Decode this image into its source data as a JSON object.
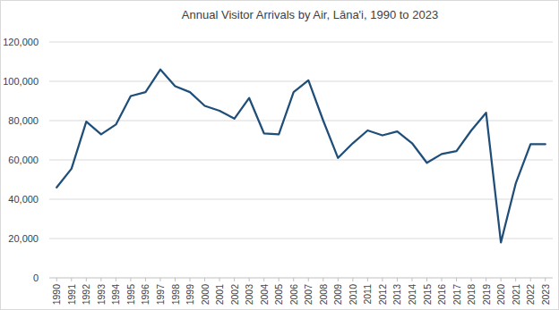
{
  "chart_data": {
    "type": "line",
    "title": "Annual Visitor Arrivals by Air, Lāna'i, 1990 to 2023",
    "categories": [
      "1990",
      "1991",
      "1992",
      "1993",
      "1994",
      "1995",
      "1996",
      "1997",
      "1998",
      "1999",
      "2000",
      "2001",
      "2002",
      "2003",
      "2004",
      "2005",
      "2006",
      "2007",
      "2008",
      "2009",
      "2010",
      "2011",
      "2012",
      "2013",
      "2014",
      "2015",
      "2016",
      "2017",
      "2018",
      "2019",
      "2020",
      "2021",
      "2022",
      "2023"
    ],
    "values": [
      46000,
      55500,
      79500,
      73000,
      78000,
      92500,
      94500,
      106000,
      97500,
      94500,
      87500,
      85000,
      81000,
      91500,
      73500,
      73000,
      94500,
      100500,
      80000,
      61000,
      68500,
      75000,
      72500,
      74500,
      68500,
      58500,
      63000,
      64500,
      75000,
      84000,
      18000,
      48000,
      68000,
      68000
    ],
    "color": "#1f4e79",
    "ylim": [
      0,
      120000
    ],
    "yticks": [
      0,
      {
        "value": 20000,
        "label": "20,000"
      },
      {
        "value": 40000,
        "label": "40,000"
      },
      {
        "value": 60000,
        "label": "60,000"
      },
      {
        "value": 80000,
        "label": "80,000"
      },
      {
        "value": 100000,
        "label": "100,000"
      },
      {
        "value": 120000,
        "label": "120,000"
      }
    ],
    "grid": true
  }
}
